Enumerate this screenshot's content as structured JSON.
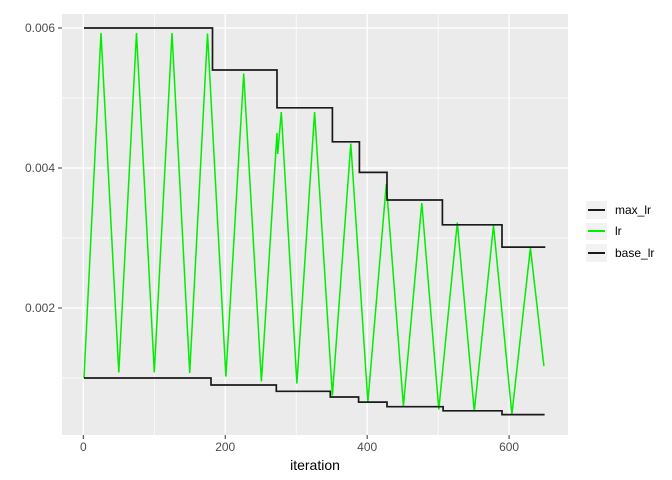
{
  "chart_data": {
    "type": "line",
    "title": "",
    "xlabel": "iteration",
    "ylabel": "",
    "xlim": [
      -30,
      683
    ],
    "ylim": [
      0.000186,
      0.0062
    ],
    "grid": true,
    "legend_position": "right",
    "x_major_ticks": [
      {
        "value": 0,
        "label": "0"
      },
      {
        "value": 200,
        "label": "200"
      },
      {
        "value": 400,
        "label": "400"
      },
      {
        "value": 600,
        "label": "600"
      }
    ],
    "x_minor_ticks": [
      100,
      300,
      500
    ],
    "y_major_ticks": [
      {
        "value": 0.002,
        "label": "0.002"
      },
      {
        "value": 0.004,
        "label": "0.004"
      },
      {
        "value": 0.006,
        "label": "0.006"
      }
    ],
    "y_minor_ticks": [
      0.001,
      0.003,
      0.005
    ],
    "legend": [
      {
        "label": "max_lr",
        "color": "#1a1a1a"
      },
      {
        "label": "lr",
        "color": "#00ee00"
      },
      {
        "label": "base_lr",
        "color": "#1a1a1a"
      }
    ],
    "series": [
      {
        "name": "lr",
        "color": "#00ee00",
        "width": 1.5,
        "points": [
          [
            1,
            0.001
          ],
          [
            25,
            0.00593
          ],
          [
            50,
            0.00108
          ],
          [
            75,
            0.00593
          ],
          [
            100,
            0.00108
          ],
          [
            125,
            0.00593
          ],
          [
            150,
            0.00107
          ],
          [
            175,
            0.00592
          ],
          [
            201,
            0.00102
          ],
          [
            226,
            0.00535
          ],
          [
            251,
            0.00095
          ],
          [
            273,
            0.0045
          ],
          [
            274,
            0.0042
          ],
          [
            279,
            0.0048
          ],
          [
            301,
            0.00092
          ],
          [
            326,
            0.0048
          ],
          [
            351,
            0.00075
          ],
          [
            377,
            0.00435
          ],
          [
            401,
            0.00066
          ],
          [
            427,
            0.00377
          ],
          [
            451,
            0.0006
          ],
          [
            477,
            0.0035
          ],
          [
            501,
            0.00055
          ],
          [
            527,
            0.00322
          ],
          [
            551,
            0.00052
          ],
          [
            578,
            0.00318
          ],
          [
            604,
            0.00048
          ],
          [
            630,
            0.00286
          ],
          [
            649,
            0.00117
          ]
        ]
      },
      {
        "name": "max_lr",
        "color": "#1a1a1a",
        "width": 1.7,
        "points": [
          [
            1,
            0.006
          ],
          [
            182,
            0.006
          ],
          [
            182,
            0.0054
          ],
          [
            273,
            0.0054
          ],
          [
            273,
            0.00486
          ],
          [
            351,
            0.00486
          ],
          [
            351,
            0.004374
          ],
          [
            389,
            0.004374
          ],
          [
            389,
            0.003937
          ],
          [
            428,
            0.003937
          ],
          [
            428,
            0.003543
          ],
          [
            506,
            0.003543
          ],
          [
            506,
            0.003189
          ],
          [
            590,
            0.003189
          ],
          [
            590,
            0.00287
          ],
          [
            651,
            0.00287
          ]
        ]
      },
      {
        "name": "base_lr",
        "color": "#1a1a1a",
        "width": 1.7,
        "points": [
          [
            1,
            0.001
          ],
          [
            180,
            0.001
          ],
          [
            180,
            0.0009
          ],
          [
            272,
            0.0009
          ],
          [
            272,
            0.00081
          ],
          [
            348,
            0.00081
          ],
          [
            348,
            0.000729
          ],
          [
            388,
            0.000729
          ],
          [
            388,
            0.000656
          ],
          [
            428,
            0.000656
          ],
          [
            428,
            0.00059
          ],
          [
            507,
            0.00059
          ],
          [
            507,
            0.000531
          ],
          [
            590,
            0.000531
          ],
          [
            590,
            0.000478
          ],
          [
            650,
            0.000478
          ]
        ]
      }
    ],
    "colors": {
      "background": "#ffffff",
      "panel": "#ebebeb",
      "grid": "#ffffff",
      "tick_mark": "#333333",
      "tick_text": "#4d4d4d",
      "axis_title": "#000000",
      "legend_key": "#f2f2f2"
    }
  }
}
